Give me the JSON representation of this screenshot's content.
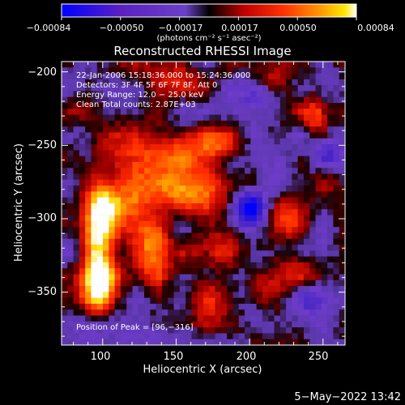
{
  "colorbar": {
    "tick_labels": [
      "−0.00084",
      "−0.00050",
      "−0.00017",
      "0.00017",
      "0.00050",
      "0.00084"
    ],
    "units_label": "(photons cm⁻² s⁻¹ asec⁻²)"
  },
  "plot": {
    "title": "Reconstructed RHESSI Image",
    "xlabel": "Heliocentric X (arcsec)",
    "ylabel": "Heliocentric Y (arcsec)",
    "x_ticks": [
      "100",
      "150",
      "200",
      "250"
    ],
    "y_ticks": [
      "−200",
      "−250",
      "−300",
      "−350"
    ],
    "info_lines": [
      "22-Jan-2006 15:18:36.000 to 15:24:36.000",
      "Detectors: 3F 4F 5F 6F 7F 8F, Att 0",
      "Energy Range: 12.0 − 25.0 keV",
      "Clean    Total counts: 2.87E+03"
    ],
    "peak_label": "Position of Peak = [96,−316]"
  },
  "footer": {
    "date": "5−May−2022 13:42"
  },
  "chart_data": {
    "type": "heatmap",
    "title": "Reconstructed RHESSI Image",
    "xlabel": "Heliocentric X (arcsec)",
    "ylabel": "Heliocentric Y (arcsec)",
    "xlim": [
      72,
      265
    ],
    "ylim": [
      -386,
      -193
    ],
    "value_range": [
      -0.00084,
      0.00084
    ],
    "peak": [
      96,
      -316
    ],
    "colormap": [
      "#0000ff",
      "#6a2fb8",
      "#8a48c8",
      "#1a0000",
      "#b00000",
      "#ff2000",
      "#ff9000",
      "#ffe000",
      "#ffffff"
    ],
    "sources": [
      {
        "x": 96,
        "y": -316,
        "value": 0.00084,
        "sx": 7,
        "sy": 24
      },
      {
        "x": 104,
        "y": -292,
        "value": 0.0007,
        "sx": 10,
        "sy": 12
      },
      {
        "x": 98,
        "y": -345,
        "value": 0.00062,
        "sx": 8,
        "sy": 12
      },
      {
        "x": 135,
        "y": -320,
        "value": 0.00066,
        "sx": 8,
        "sy": 15
      },
      {
        "x": 150,
        "y": -282,
        "value": 0.00058,
        "sx": 22,
        "sy": 10
      },
      {
        "x": 135,
        "y": -258,
        "value": 0.00048,
        "sx": 26,
        "sy": 12
      },
      {
        "x": 178,
        "y": -250,
        "value": 0.00042,
        "sx": 12,
        "sy": 8
      },
      {
        "x": 175,
        "y": -322,
        "value": 0.00032,
        "sx": 12,
        "sy": 10
      },
      {
        "x": 172,
        "y": -352,
        "value": 0.00036,
        "sx": 10,
        "sy": 12
      },
      {
        "x": 245,
        "y": -230,
        "value": 0.0004,
        "sx": 6,
        "sy": 10
      },
      {
        "x": 225,
        "y": -300,
        "value": 0.00042,
        "sx": 9,
        "sy": 9
      },
      {
        "x": 232,
        "y": -335,
        "value": 0.00034,
        "sx": 9,
        "sy": 10
      },
      {
        "x": 210,
        "y": -348,
        "value": 0.00026,
        "sx": 8,
        "sy": 8
      },
      {
        "x": 150,
        "y": -205,
        "value": 0.00022,
        "sx": 14,
        "sy": 8
      },
      {
        "x": 215,
        "y": -207,
        "value": 0.00022,
        "sx": 8,
        "sy": 6
      },
      {
        "x": 252,
        "y": -275,
        "value": 0.00026,
        "sx": 7,
        "sy": 9
      },
      {
        "x": 200,
        "y": -295,
        "value": -0.00075,
        "sx": 8,
        "sy": 10
      },
      {
        "x": 240,
        "y": -355,
        "value": -0.00035,
        "sx": 10,
        "sy": 8
      },
      {
        "x": 205,
        "y": -215,
        "value": -0.0003,
        "sx": 10,
        "sy": 8
      },
      {
        "x": 120,
        "y": -375,
        "value": -0.0003,
        "sx": 14,
        "sy": 8
      },
      {
        "x": 255,
        "y": -255,
        "value": -0.00028,
        "sx": 8,
        "sy": 10
      }
    ]
  }
}
